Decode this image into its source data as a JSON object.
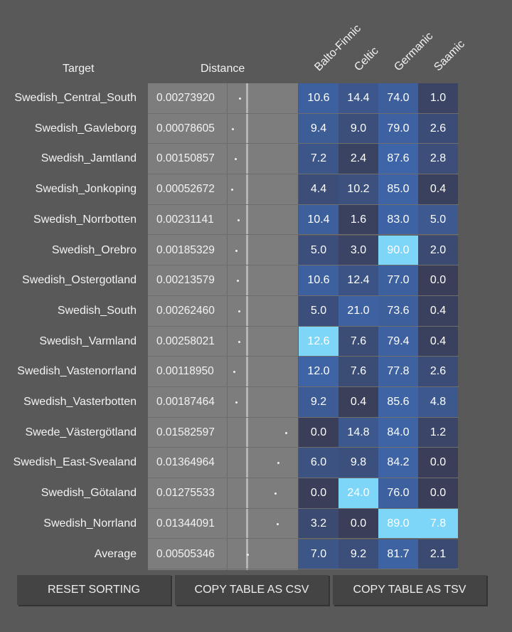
{
  "headers": {
    "target": "Target",
    "distance": "Distance",
    "components": [
      "Balto-Finnic",
      "Celtic",
      "Germanic",
      "Saamic"
    ]
  },
  "rows": [
    {
      "name": "Swedish_Central_South",
      "distance": "0.00273920",
      "values": [
        "10.6",
        "14.4",
        "74.0",
        "1.0"
      ]
    },
    {
      "name": "Swedish_Gavleborg",
      "distance": "0.00078605",
      "values": [
        "9.4",
        "9.0",
        "79.0",
        "2.6"
      ]
    },
    {
      "name": "Swedish_Jamtland",
      "distance": "0.00150857",
      "values": [
        "7.2",
        "2.4",
        "87.6",
        "2.8"
      ]
    },
    {
      "name": "Swedish_Jonkoping",
      "distance": "0.00052672",
      "values": [
        "4.4",
        "10.2",
        "85.0",
        "0.4"
      ]
    },
    {
      "name": "Swedish_Norrbotten",
      "distance": "0.00231141",
      "values": [
        "10.4",
        "1.6",
        "83.0",
        "5.0"
      ]
    },
    {
      "name": "Swedish_Orebro",
      "distance": "0.00185329",
      "values": [
        "5.0",
        "3.0",
        "90.0",
        "2.0"
      ]
    },
    {
      "name": "Swedish_Ostergotland",
      "distance": "0.00213579",
      "values": [
        "10.6",
        "12.4",
        "77.0",
        "0.0"
      ]
    },
    {
      "name": "Swedish_South",
      "distance": "0.00262460",
      "values": [
        "5.0",
        "21.0",
        "73.6",
        "0.4"
      ]
    },
    {
      "name": "Swedish_Varmland",
      "distance": "0.00258021",
      "values": [
        "12.6",
        "7.6",
        "79.4",
        "0.4"
      ]
    },
    {
      "name": "Swedish_Vastenorrland",
      "distance": "0.00118950",
      "values": [
        "12.0",
        "7.6",
        "77.8",
        "2.6"
      ]
    },
    {
      "name": "Swedish_Vasterbotten",
      "distance": "0.00187464",
      "values": [
        "9.2",
        "0.4",
        "85.6",
        "4.8"
      ]
    },
    {
      "name": "Swede_Västergötland",
      "distance": "0.01582597",
      "values": [
        "0.0",
        "14.8",
        "84.0",
        "1.2"
      ]
    },
    {
      "name": "Swedish_East-Svealand",
      "distance": "0.01364964",
      "values": [
        "6.0",
        "9.8",
        "84.2",
        "0.0"
      ]
    },
    {
      "name": "Swedish_Götaland",
      "distance": "0.01275533",
      "values": [
        "0.0",
        "24.0",
        "76.0",
        "0.0"
      ]
    },
    {
      "name": "Swedish_Norrland",
      "distance": "0.01344091",
      "values": [
        "3.2",
        "0.0",
        "89.0",
        "7.8"
      ]
    },
    {
      "name": "Average",
      "distance": "0.00505346",
      "values": [
        "7.0",
        "9.2",
        "81.7",
        "2.1"
      ]
    }
  ],
  "buttons": {
    "reset": "RESET SORTING",
    "csv": "COPY TABLE AS CSV",
    "tsv": "COPY TABLE AS TSV"
  }
}
